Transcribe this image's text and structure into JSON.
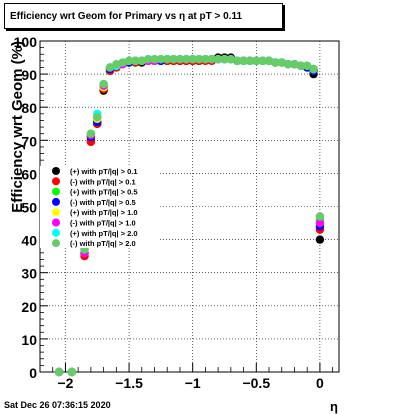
{
  "chart_data": {
    "type": "scatter",
    "title": "Efficiency wrt Geom for Primary vs   η at pT > 0.11",
    "xlabel": "η",
    "ylabel": "Efficiency wrt Geom (%)",
    "xlim": [
      -2.2,
      0.15
    ],
    "ylim": [
      0,
      100
    ],
    "xticks": [
      -2,
      -1.5,
      -1,
      -0.5,
      0
    ],
    "xtick_labels": [
      "−2",
      "−1.5",
      "−1",
      "−0.5",
      "0"
    ],
    "yticks": [
      0,
      10,
      20,
      30,
      40,
      50,
      60,
      70,
      80,
      90,
      100
    ],
    "grid": true,
    "legend_position": "center-left",
    "series": [
      {
        "name": "(+) with pT/|q| > 0.1",
        "color": "#000000",
        "x": [
          -2.05,
          -1.95,
          -1.85,
          -1.8,
          -1.75,
          -1.7,
          -1.65,
          -1.6,
          -1.55,
          -1.5,
          -1.45,
          -1.4,
          -1.35,
          -1.3,
          -1.25,
          -1.2,
          -1.15,
          -1.1,
          -1.05,
          -1.0,
          -0.95,
          -0.9,
          -0.85,
          -0.8,
          -0.75,
          -0.7,
          -0.65,
          -0.6,
          -0.55,
          -0.5,
          -0.45,
          -0.4,
          -0.35,
          -0.3,
          -0.25,
          -0.2,
          -0.15,
          -0.1,
          -0.05,
          0.0
        ],
        "y": [
          0,
          0,
          36,
          70,
          75,
          85,
          91,
          92,
          93,
          93.5,
          93.5,
          93.5,
          94,
          94,
          94,
          94,
          94,
          94,
          94,
          94,
          94,
          94.5,
          94.5,
          95,
          95,
          95,
          94,
          94,
          94,
          94,
          94,
          94,
          93.5,
          93.5,
          93,
          93,
          92.5,
          92,
          90,
          40
        ]
      },
      {
        "name": "(-) with pT/|q| > 0.1",
        "color": "#ff0000",
        "x": [
          -2.05,
          -1.95,
          -1.85,
          -1.8,
          -1.75,
          -1.7,
          -1.65,
          -1.6,
          -1.55,
          -1.5,
          -1.45,
          -1.4,
          -1.35,
          -1.3,
          -1.25,
          -1.2,
          -1.15,
          -1.1,
          -1.05,
          -1.0,
          -0.95,
          -0.9,
          -0.85,
          -0.8,
          -0.75,
          -0.7,
          -0.65,
          -0.6,
          -0.55,
          -0.5,
          -0.45,
          -0.4,
          -0.35,
          -0.3,
          -0.25,
          -0.2,
          -0.15,
          -0.1,
          -0.05,
          0.0
        ],
        "y": [
          0,
          0,
          35,
          69.5,
          75,
          85.5,
          91,
          92,
          93,
          93.5,
          93.5,
          94,
          94,
          94,
          94,
          94,
          94,
          94,
          94,
          94,
          94,
          94,
          94,
          94.5,
          94.5,
          94.5,
          94,
          94,
          94,
          94,
          94,
          94,
          93.5,
          93.5,
          93,
          93,
          92.5,
          92,
          91,
          43
        ]
      },
      {
        "name": "(+) with pT/|q| > 0.5",
        "color": "#00ff00",
        "x": [
          -2.05,
          -1.95,
          -1.85,
          -1.8,
          -1.75,
          -1.7,
          -1.65,
          -1.6,
          -1.55,
          -1.5,
          -1.45,
          -1.4,
          -1.35,
          -1.3,
          -1.25,
          -1.2,
          -1.15,
          -1.1,
          -1.05,
          -1.0,
          -0.95,
          -0.9,
          -0.85,
          -0.8,
          -0.75,
          -0.7,
          -0.65,
          -0.6,
          -0.55,
          -0.5,
          -0.45,
          -0.4,
          -0.35,
          -0.3,
          -0.25,
          -0.2,
          -0.15,
          -0.1,
          -0.05,
          0.0
        ],
        "y": [
          0,
          0,
          37,
          71,
          76,
          86,
          91.5,
          92.5,
          93,
          93.5,
          94,
          94,
          94,
          94,
          94,
          94.5,
          94.5,
          94.5,
          94.5,
          94.5,
          94.5,
          94.5,
          94.5,
          94.5,
          94.5,
          94.5,
          94,
          94,
          94,
          94,
          94,
          94,
          93.5,
          93.5,
          93,
          93,
          92.5,
          92,
          91,
          46
        ]
      },
      {
        "name": "(-) with pT/|q| > 0.5",
        "color": "#0000ff",
        "x": [
          -2.05,
          -1.95,
          -1.85,
          -1.8,
          -1.75,
          -1.7,
          -1.65,
          -1.6,
          -1.55,
          -1.5,
          -1.45,
          -1.4,
          -1.35,
          -1.3,
          -1.25,
          -1.2,
          -1.15,
          -1.1,
          -1.05,
          -1.0,
          -0.95,
          -0.9,
          -0.85,
          -0.8,
          -0.75,
          -0.7,
          -0.65,
          -0.6,
          -0.55,
          -0.5,
          -0.45,
          -0.4,
          -0.35,
          -0.3,
          -0.25,
          -0.2,
          -0.15,
          -0.1,
          -0.05,
          0.0
        ],
        "y": [
          0,
          0,
          36,
          71,
          75.5,
          86,
          91.5,
          92.5,
          93,
          93.5,
          94,
          94,
          94,
          94,
          94,
          94.5,
          94.5,
          94.5,
          94.5,
          94.5,
          94.5,
          94.5,
          94.5,
          94.5,
          94.5,
          94.5,
          94,
          94,
          94,
          94,
          94,
          94,
          93.5,
          93.5,
          93,
          93,
          92.5,
          92,
          91,
          44
        ]
      },
      {
        "name": "(+) with pT/|q| > 1.0",
        "color": "#ffff00",
        "x": [
          -2.05,
          -1.95,
          -1.85,
          -1.8,
          -1.75,
          -1.7,
          -1.65,
          -1.6,
          -1.55,
          -1.5,
          -1.45,
          -1.4,
          -1.35,
          -1.3,
          -1.25,
          -1.2,
          -1.15,
          -1.1,
          -1.05,
          -1.0,
          -0.95,
          -0.9,
          -0.85,
          -0.8,
          -0.75,
          -0.7,
          -0.65,
          -0.6,
          -0.55,
          -0.5,
          -0.45,
          -0.4,
          -0.35,
          -0.3,
          -0.25,
          -0.2,
          -0.15,
          -0.1,
          -0.05,
          0.0
        ],
        "y": [
          0,
          0,
          36,
          72,
          76.5,
          86,
          92,
          92.5,
          93,
          94,
          94,
          94,
          94,
          94,
          94.5,
          94.5,
          94.5,
          94.5,
          94.5,
          94.5,
          94.5,
          94.5,
          94.5,
          94.5,
          94.5,
          94.5,
          94,
          94,
          94,
          94,
          94,
          94,
          93.5,
          93.5,
          93,
          93,
          92.5,
          92.5,
          91.5,
          45
        ]
      },
      {
        "name": "(-) with pT/|q| > 1.0",
        "color": "#ff00ff",
        "x": [
          -2.05,
          -1.95,
          -1.85,
          -1.8,
          -1.75,
          -1.7,
          -1.65,
          -1.6,
          -1.55,
          -1.5,
          -1.45,
          -1.4,
          -1.35,
          -1.3,
          -1.25,
          -1.2,
          -1.15,
          -1.1,
          -1.05,
          -1.0,
          -0.95,
          -0.9,
          -0.85,
          -0.8,
          -0.75,
          -0.7,
          -0.65,
          -0.6,
          -0.55,
          -0.5,
          -0.45,
          -0.4,
          -0.35,
          -0.3,
          -0.25,
          -0.2,
          -0.15,
          -0.1,
          -0.05,
          0.0
        ],
        "y": [
          0,
          0,
          36,
          71.5,
          77,
          86.5,
          92,
          92.5,
          93,
          94,
          94,
          94,
          94,
          94,
          94.5,
          94.5,
          94.5,
          94.5,
          94.5,
          94.5,
          94.5,
          94.5,
          94.5,
          94.5,
          94.5,
          94.5,
          94,
          94,
          94,
          94,
          94,
          94,
          93.5,
          93.5,
          93,
          93,
          92.5,
          92.5,
          91.5,
          45
        ]
      },
      {
        "name": "(+) with pT/|q| > 2.0",
        "color": "#00ffff",
        "x": [
          -2.05,
          -1.95,
          -1.85,
          -1.8,
          -1.75,
          -1.7,
          -1.65,
          -1.6,
          -1.55,
          -1.5,
          -1.45,
          -1.4,
          -1.35,
          -1.3,
          -1.25,
          -1.2,
          -1.15,
          -1.1,
          -1.05,
          -1.0,
          -0.95,
          -0.9,
          -0.85,
          -0.8,
          -0.75,
          -0.7,
          -0.65,
          -0.6,
          -0.55,
          -0.5,
          -0.45,
          -0.4,
          -0.35,
          -0.3,
          -0.25,
          -0.2,
          -0.15,
          -0.1,
          -0.05,
          0.0
        ],
        "y": [
          0,
          0,
          37,
          72,
          78,
          87,
          92,
          92.5,
          93.5,
          94,
          94,
          94,
          94.5,
          94.5,
          94.5,
          94.5,
          94.5,
          94.5,
          94.5,
          94.5,
          94.5,
          94.5,
          94.5,
          94.5,
          94.5,
          94.5,
          94,
          94,
          94,
          94,
          94,
          94,
          93.5,
          93.5,
          93,
          93,
          92.5,
          92.5,
          91.5,
          47
        ]
      },
      {
        "name": "(-) with pT/|q| > 2.0",
        "color": "#66cc66",
        "x": [
          -2.05,
          -1.95,
          -1.85,
          -1.8,
          -1.75,
          -1.7,
          -1.65,
          -1.6,
          -1.55,
          -1.5,
          -1.45,
          -1.4,
          -1.35,
          -1.3,
          -1.25,
          -1.2,
          -1.15,
          -1.1,
          -1.05,
          -1.0,
          -0.95,
          -0.9,
          -0.85,
          -0.8,
          -0.75,
          -0.7,
          -0.65,
          -0.6,
          -0.55,
          -0.5,
          -0.45,
          -0.4,
          -0.35,
          -0.3,
          -0.25,
          -0.2,
          -0.15,
          -0.1,
          -0.05,
          0.0
        ],
        "y": [
          0,
          0,
          37,
          72,
          77,
          87,
          92,
          93,
          93.5,
          94,
          94,
          94,
          94.5,
          94.5,
          94.5,
          94.5,
          94.5,
          94.5,
          94.5,
          94.5,
          94.5,
          94.5,
          94.5,
          94.5,
          94.5,
          94.5,
          94,
          94,
          94,
          94,
          94,
          94,
          93.5,
          93.5,
          93,
          93,
          92.5,
          92.5,
          91.5,
          47
        ]
      }
    ]
  },
  "footer": {
    "timestamp": "Sat Dec 26 07:36:15 2020"
  }
}
